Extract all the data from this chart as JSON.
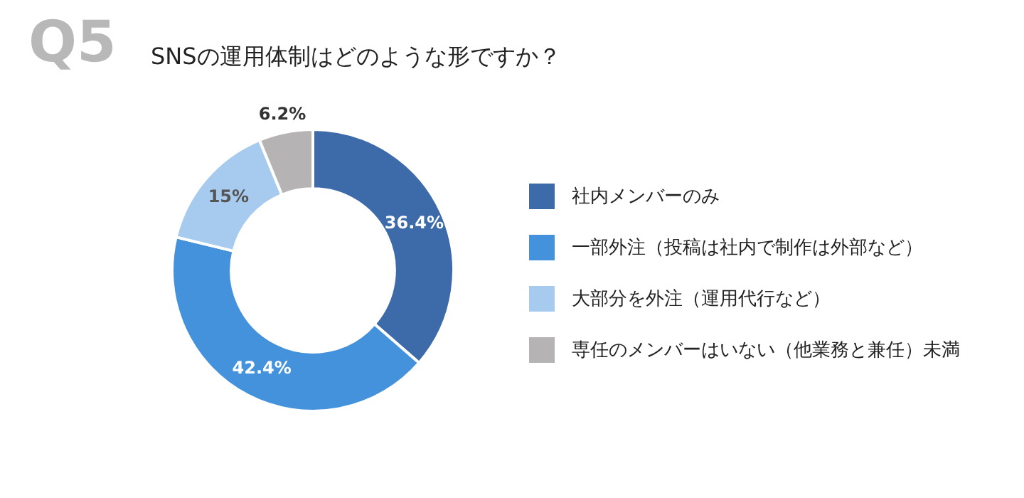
{
  "chart_data": {
    "type": "donut",
    "title": "SNSの運用体制はどのような形ですか？",
    "annotations": [
      "Q5"
    ],
    "categories": [
      "社内メンバーのみ",
      "一部外注（投稿は社内で制作は外部など）",
      "大部分を外注（運用代行など）",
      "専任のメンバーはいない（他業務と兼任）未満"
    ],
    "values": [
      36.4,
      42.4,
      15,
      6.2
    ],
    "colors": [
      "#3d6aa8",
      "#4592dc",
      "#a7cbee",
      "#b5b3b3"
    ],
    "value_labels": [
      "36.4%",
      "42.4%",
      "15%",
      "6.2%"
    ],
    "legend": "right"
  }
}
